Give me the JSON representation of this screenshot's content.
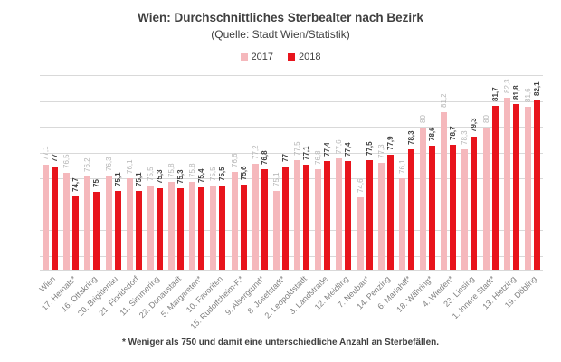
{
  "title": "Wien: Durchschnittliches Sterbealter nach Bezirk",
  "subtitle": "(Quelle: Stadt Wien/Statistik)",
  "footnote": "* Weniger als 750 und damit eine unterschiedliche Anzahl an Sterbefällen.",
  "colors": {
    "series_2017": "#f5b8bc",
    "series_2018": "#e8141c",
    "gridline": "#d9d9d9",
    "heading_text": "#404040",
    "value_label_2017": "#b5b5b5",
    "value_label_2018": "#3f3f3f",
    "axis_label": "#7f7f7f"
  },
  "chart_data": {
    "type": "bar",
    "title": "Wien: Durchschnittliches Sterbealter nach Bezirk",
    "subtitle": "(Quelle: Stadt Wien/Statistik)",
    "legend_position": "top",
    "grid": true,
    "ylim": [
      69,
      84
    ],
    "gridline_values": [
      70,
      72,
      74,
      76,
      78,
      80,
      82,
      84
    ],
    "value_label_decimal": "comma",
    "categories": [
      "Wien",
      "17. Hernals*",
      "16. Ottakring",
      "20. Brigittenau",
      "21. Floridsdorf",
      "11. Simmering",
      "22. Donaustadt",
      "5. Margareten*",
      "10. Favoriten",
      "15. Rudolfsheim-F.*",
      "9. Alsergrund*",
      "8. Josefstadt*",
      "2. Leopoldstadt",
      "3. Landstraße",
      "12. Meidling",
      "7. Neubau*",
      "14. Penzing",
      "6. Mariahilf*",
      "18. Währing*",
      "4. Wieden*",
      "23. Liesing",
      "1. Innere Stadt*",
      "13. Hietzing",
      "19. Döbling"
    ],
    "series": [
      {
        "name": "2017",
        "color": "#f5b8bc",
        "values": [
          77.1,
          76.5,
          76.2,
          76.3,
          76.1,
          75.5,
          75.8,
          75.8,
          75.5,
          76.6,
          77.2,
          75.1,
          77.5,
          76.8,
          77.6,
          74.6,
          77.3,
          76.1,
          80,
          81.2,
          78.3,
          80,
          82.3,
          81.6
        ]
      },
      {
        "name": "2018",
        "color": "#e8141c",
        "values": [
          77,
          74.7,
          75,
          75.1,
          75.1,
          75.3,
          75.3,
          75.4,
          75.5,
          75.6,
          76.8,
          77,
          77.1,
          77.4,
          77.4,
          77.5,
          77.9,
          78.3,
          78.6,
          78.7,
          79.3,
          81.7,
          81.8,
          82.1
        ]
      }
    ]
  }
}
